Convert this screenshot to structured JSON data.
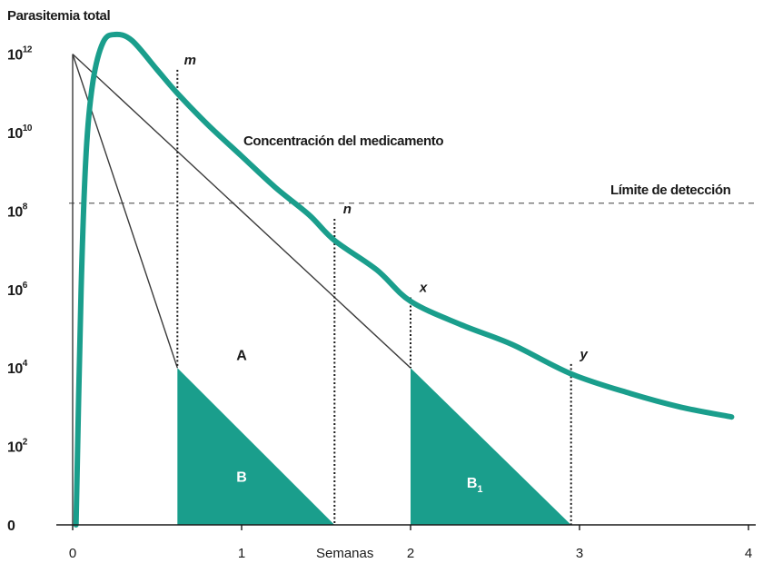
{
  "chart_data": {
    "type": "line",
    "ylabel": "Parasitemia total",
    "xlabel": "Semanas",
    "x_ticks": [
      "0",
      "1",
      "2",
      "3",
      "4"
    ],
    "y_ticks": [
      {
        "base": "0",
        "exp": ""
      },
      {
        "base": "10",
        "exp": "2"
      },
      {
        "base": "10",
        "exp": "4"
      },
      {
        "base": "10",
        "exp": "6"
      },
      {
        "base": "10",
        "exp": "8"
      },
      {
        "base": "10",
        "exp": "10"
      },
      {
        "base": "10",
        "exp": "12"
      }
    ],
    "y_scale": "log10",
    "xlim": [
      0,
      4
    ],
    "ylim_log10": [
      0,
      12
    ],
    "drug_curve": {
      "label": "Concentración del medicamento",
      "color": "#1a9e8c",
      "points": [
        [
          0.02,
          0
        ],
        [
          0.05,
          6
        ],
        [
          0.08,
          9.5
        ],
        [
          0.12,
          11.3
        ],
        [
          0.18,
          12.3
        ],
        [
          0.25,
          12.5
        ],
        [
          0.35,
          12.35
        ],
        [
          0.5,
          11.6
        ],
        [
          0.62,
          11.0
        ],
        [
          0.8,
          10.2
        ],
        [
          1.0,
          9.4
        ],
        [
          1.2,
          8.6
        ],
        [
          1.4,
          7.9
        ],
        [
          1.55,
          7.25
        ],
        [
          1.8,
          6.5
        ],
        [
          2.0,
          5.7
        ],
        [
          2.3,
          5.1
        ],
        [
          2.6,
          4.6
        ],
        [
          2.95,
          3.85
        ],
        [
          3.3,
          3.35
        ],
        [
          3.6,
          3.0
        ],
        [
          3.9,
          2.75
        ]
      ]
    },
    "detection_limit": {
      "label": "Límite de detección",
      "log_y": 8.2
    },
    "parasite_lines": [
      {
        "name": "fast",
        "points": [
          [
            0,
            12
          ],
          [
            0.62,
            4
          ]
        ]
      },
      {
        "name": "slow",
        "points": [
          [
            0,
            12
          ],
          [
            2.0,
            4
          ]
        ]
      },
      {
        "name": "initial",
        "points": [
          [
            0,
            0
          ],
          [
            0,
            12
          ]
        ]
      }
    ],
    "regions": [
      {
        "label": "B",
        "sub": "",
        "points": [
          [
            0.62,
            4
          ],
          [
            1.55,
            0
          ],
          [
            0.62,
            0
          ]
        ],
        "label_at": [
          1.0,
          1.1
        ]
      },
      {
        "label": "B",
        "sub": "1",
        "points": [
          [
            2.0,
            4
          ],
          [
            2.95,
            0
          ],
          [
            2.0,
            0
          ]
        ],
        "label_at": [
          2.38,
          0.95
        ]
      }
    ],
    "region_a": {
      "label": "A",
      "at": [
        1.0,
        4.2
      ]
    },
    "markers": [
      {
        "label": "m",
        "x": 0.62,
        "top": 11.6,
        "bottom": 4
      },
      {
        "label": "n",
        "x": 1.55,
        "top": 7.8,
        "bottom": 0
      },
      {
        "label": "x",
        "x": 2.0,
        "top": 5.8,
        "bottom": 4
      },
      {
        "label": "y",
        "x": 2.95,
        "top": 4.1,
        "bottom": 0
      }
    ]
  }
}
